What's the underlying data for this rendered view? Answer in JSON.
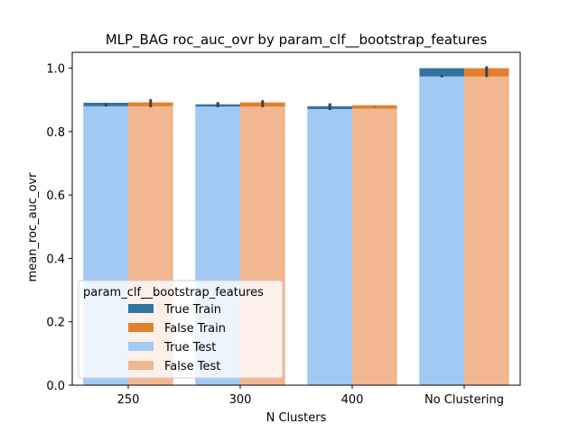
{
  "chart_data": {
    "type": "bar",
    "title": "MLP_BAG roc_auc_ovr by param_clf__bootstrap_features",
    "xlabel": "N Clusters",
    "ylabel": "mean_roc_auc_ovr",
    "categories": [
      "250",
      "300",
      "400",
      "No Clustering"
    ],
    "ylim": [
      0,
      1.05
    ],
    "yticks": [
      0.0,
      0.2,
      0.4,
      0.6,
      0.8,
      1.0
    ],
    "ytick_labels": [
      "0.0",
      "0.2",
      "0.4",
      "0.6",
      "0.8",
      "1.0"
    ],
    "legend": {
      "title": "param_clf__bootstrap_features",
      "placement": "lower-left"
    },
    "series": [
      {
        "name": "True Train",
        "group": "True",
        "layer": "train",
        "color": "#3274a1",
        "values": [
          0.891,
          0.886,
          0.88,
          1.0
        ],
        "err_low": [
          0.879,
          0.877,
          0.868,
          0.971
        ],
        "err_high": [
          0.889,
          0.893,
          0.889,
          0.978
        ]
      },
      {
        "name": "False Train",
        "group": "False",
        "layer": "train",
        "color": "#e1812c",
        "values": [
          0.892,
          0.892,
          0.883,
          1.0
        ],
        "err_low": [
          0.877,
          0.877,
          0.878,
          0.972
        ],
        "err_high": [
          0.902,
          0.899,
          0.88,
          1.006
        ]
      },
      {
        "name": "True Test",
        "group": "True",
        "layer": "test",
        "color": "#a1c9f4",
        "values": [
          0.88,
          0.879,
          0.871,
          0.974
        ],
        "err_low": [
          0.86,
          0.86,
          0.86,
          0.96
        ],
        "err_high": [
          0.89,
          0.89,
          0.88,
          0.98
        ]
      },
      {
        "name": "False Test",
        "group": "False",
        "layer": "test",
        "color": "#f2b690",
        "values": [
          0.88,
          0.879,
          0.872,
          0.974
        ],
        "err_low": [
          0.86,
          0.86,
          0.86,
          0.96
        ],
        "err_high": [
          0.89,
          0.89,
          0.88,
          0.98
        ]
      }
    ],
    "grid": false
  }
}
